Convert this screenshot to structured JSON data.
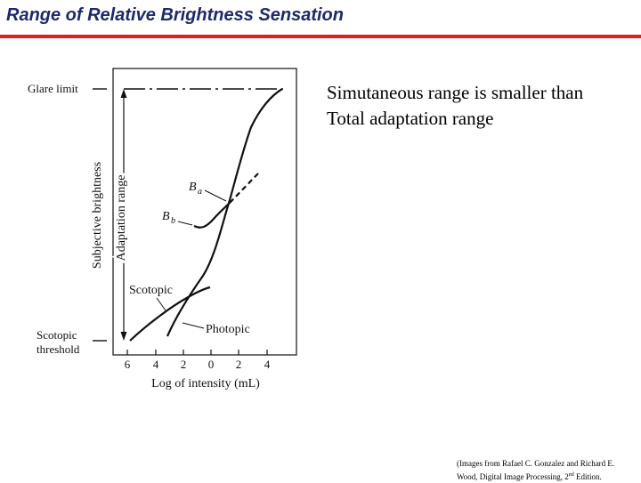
{
  "slide": {
    "title": "Range of Relative Brightness Sensation",
    "accent_color": "#e31b23",
    "title_color": "#1c2a6b"
  },
  "figure": {
    "labels": {
      "glare_limit": "Glare limit",
      "scotopic_threshold_line1": "Scotopic",
      "scotopic_threshold_line2": "threshold",
      "y_axis": "Subjective brightness",
      "adaptation_range": "Adaptation range",
      "scotopic": "Scotopic",
      "photopic": "Photopic",
      "ba": "B",
      "ba_sub": "a",
      "bb": "B",
      "bb_sub": "b",
      "x_axis": "Log of intensity (mL)"
    },
    "x_ticks": [
      "6",
      "4",
      "2",
      "0",
      "2",
      "4"
    ]
  },
  "body": {
    "line1": "Simutaneous range is smaller than",
    "line2": "Total adaptation range"
  },
  "caption": {
    "line1": "(Images from Rafael C. Gonzalez and Richard E.",
    "line2_prefix": "Wood, Digital Image Processing, 2",
    "line2_sup": "nd",
    "line2_suffix": " Edition."
  }
}
